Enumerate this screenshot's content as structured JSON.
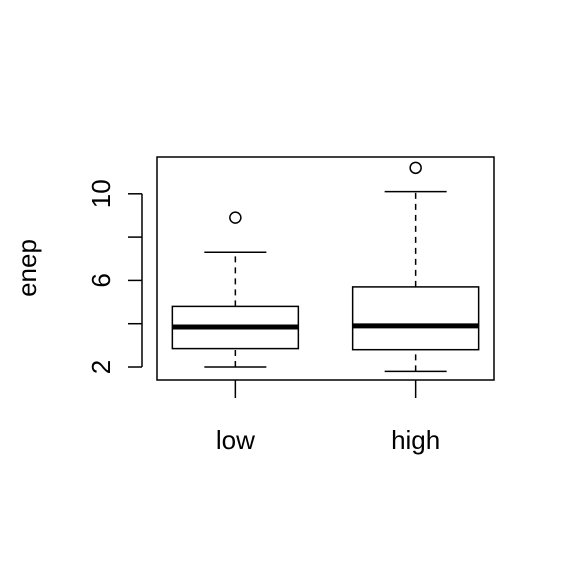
{
  "chart_data": {
    "type": "boxplot",
    "ylabel": "enep",
    "xlabel": "",
    "title": "",
    "categories": [
      "low",
      "high"
    ],
    "ylim": [
      1.4,
      11.7
    ],
    "y_ticks": [
      2,
      4,
      6,
      8,
      10
    ],
    "y_tick_labels": [
      "2",
      "",
      "6",
      "",
      "10"
    ],
    "boxes": [
      {
        "category": "low",
        "whisker_low": 2.0,
        "q1": 2.85,
        "median": 3.85,
        "q3": 4.8,
        "whisker_high": 7.3,
        "outliers": [
          8.9
        ]
      },
      {
        "category": "high",
        "whisker_low": 1.8,
        "q1": 2.8,
        "median": 3.9,
        "q3": 5.7,
        "whisker_high": 10.1,
        "outliers": [
          11.2
        ]
      }
    ],
    "grid": false,
    "legend": "none"
  }
}
